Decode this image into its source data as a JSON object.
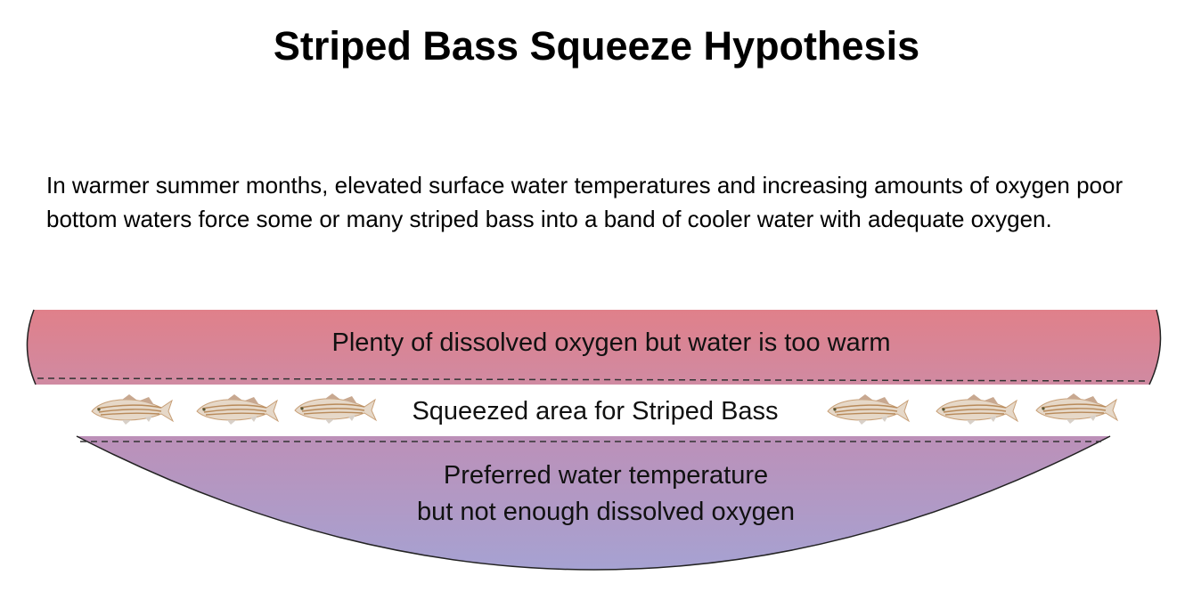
{
  "title": "Striped Bass Squeeze Hypothesis",
  "description": "In warmer summer months, elevated surface water temperatures and increasing amounts of oxygen poor bottom waters force some or many striped bass into a band of cooler water with adequate oxygen.",
  "diagram": {
    "top_zone": {
      "label": "Plenty of dissolved oxygen but water is too warm",
      "color_top": "#e0808a",
      "color_bottom": "#d08aa0"
    },
    "middle_zone": {
      "label": "Squeezed area for Striped Bass",
      "fish_icon": "striped-bass-icon",
      "fish_count_left": 3,
      "fish_count_right": 3
    },
    "bottom_zone": {
      "label_line1": "Preferred water temperature",
      "label_line2": "but not enough dissolved oxygen",
      "color_top": "#bc90b8",
      "color_bottom": "#a7a0d0"
    }
  }
}
